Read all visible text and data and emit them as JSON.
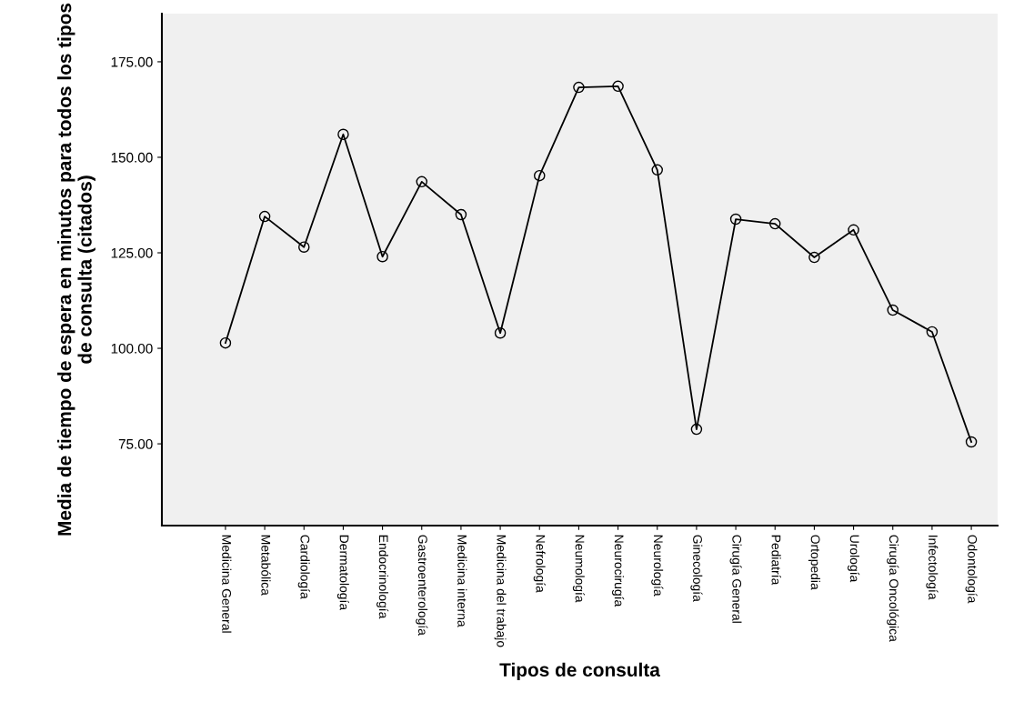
{
  "chart_data": {
    "type": "line",
    "xlabel": "Tipos de consulta",
    "ylabel": "Media de tiempo de espera en minutos para todos los tipos de consulta (citados)",
    "categories": [
      "Medicina General",
      "Metabólica",
      "Cardiología",
      "Dermatología",
      "Endocrinología",
      "Gastroenterología",
      "Medicina interna",
      "Medicina del trabajo",
      "Nefrología",
      "Neumología",
      "Neurocirugía",
      "Neurología",
      "Ginecología",
      "Cirugía General",
      "Pediatría",
      "Ortopedia",
      "Urología",
      "Cirugía Oncológica",
      "Infectología",
      "Odontología"
    ],
    "series": [
      {
        "color": "#000000",
        "values": [
          101.4,
          134.5,
          126.5,
          156.0,
          124.0,
          143.6,
          135.0,
          104.0,
          145.2,
          168.3,
          168.6,
          146.7,
          78.8,
          133.8,
          132.6,
          123.8,
          131.0,
          110.0,
          104.3,
          75.5
        ]
      }
    ],
    "ylim": [
      53.6,
      187.6
    ],
    "yticks": [
      {
        "value": 75,
        "label": "75.00"
      },
      {
        "value": 100,
        "label": "100.00"
      },
      {
        "value": 125,
        "label": "125.00"
      },
      {
        "value": 150,
        "label": "150.00"
      },
      {
        "value": 175,
        "label": "175.00"
      }
    ],
    "marker": "circle",
    "line_style": "solid",
    "grid": false,
    "legend": false
  }
}
